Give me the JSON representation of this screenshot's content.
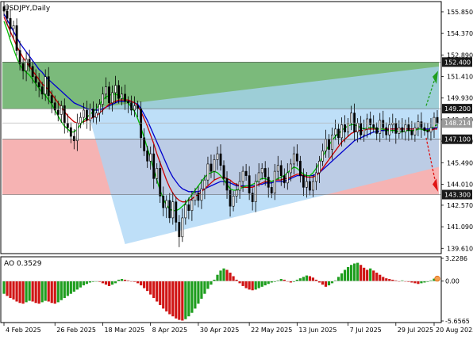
{
  "main_label": "USDJPY,Daily",
  "ao_label": "AO 0.3529",
  "colors": {
    "bull": "#000000",
    "bear": "#000000",
    "jaw": "#0000cc",
    "teeth": "#cc0000",
    "lips": "#00bb00",
    "channel": "#a8d4f5",
    "upper_zone": "#6db36d",
    "lower_zone": "#f4a6a6",
    "ao_up": "#1f9e1f",
    "ao_down": "#d01515",
    "up_arrow": "#1f9e1f",
    "down_arrow": "#e01515"
  },
  "price_axis": {
    "ticks": [
      "155.850",
      "154.370",
      "152.890",
      "151.410",
      "149.930",
      "148.450",
      "146.970",
      "145.490",
      "144.010",
      "142.570",
      "141.090",
      "139.610"
    ]
  },
  "ao_axis": {
    "ticks": [
      "3.2286",
      "0.00",
      "-5.6565"
    ]
  },
  "x_axis": {
    "ticks": [
      "4 Feb 2025",
      "26 Feb 2025",
      "18 Mar 2025",
      "8 Apr 2025",
      "30 Apr 2025",
      "22 May 2025",
      "13 Jun 2025",
      "7 Jul 2025",
      "29 Jul 2025",
      "20 Aug 2025"
    ]
  },
  "levels": [
    {
      "value": 152.4,
      "label": "152.400",
      "style": "dark"
    },
    {
      "value": 149.2,
      "label": "149.200",
      "style": "dark"
    },
    {
      "value": 148.214,
      "label": "148.214",
      "style": "grey"
    },
    {
      "value": 147.1,
      "label": "147.100",
      "style": "dark"
    },
    {
      "value": 143.3,
      "label": "143.300",
      "style": "dark"
    }
  ],
  "chart_data": {
    "type": "candlestick",
    "title": "USDJPY,Daily",
    "ylim": [
      139.3,
      156.5
    ],
    "ao_ylim": [
      -5.6565,
      3.2286
    ],
    "zones": [
      {
        "name": "upper target zone",
        "from": 149.2,
        "to": 152.4
      },
      {
        "name": "lower target zone",
        "from": 143.3,
        "to": 147.1
      }
    ],
    "channel": {
      "upper_start": 149.2,
      "upper_end": 152.1,
      "lower_start": 139.9,
      "lower_end": 145.2
    },
    "close": [
      155.9,
      155.4,
      154.7,
      154.9,
      153.2,
      152.3,
      151.8,
      152.6,
      152.1,
      151.4,
      151.0,
      150.7,
      150.2,
      151.4,
      150.1,
      149.6,
      149.1,
      148.8,
      149.4,
      148.2,
      147.9,
      147.3,
      147.0,
      148.2,
      148.6,
      149.1,
      148.4,
      149.2,
      148.6,
      148.9,
      149.5,
      150.2,
      150.7,
      149.6,
      150.3,
      150.8,
      149.9,
      150.2,
      149.7,
      149.6,
      149.1,
      149.4,
      149.2,
      147.2,
      146.3,
      145.6,
      146.1,
      144.4,
      145.1,
      143.2,
      142.4,
      142.9,
      141.7,
      142.8,
      141.4,
      140.4,
      141.7,
      142.6,
      142.2,
      142.9,
      143.4,
      142.9,
      143.7,
      144.3,
      145.4,
      144.9,
      145.7,
      146.1,
      145.3,
      144.4,
      143.6,
      142.5,
      143.2,
      143.6,
      144.2,
      144.9,
      144.6,
      143.4,
      142.8,
      144.2,
      144.8,
      145.1,
      144.5,
      143.8,
      143.4,
      144.9,
      145.3,
      144.6,
      144.1,
      144.8,
      145.4,
      146.1,
      145.6,
      144.6,
      143.8,
      144.2,
      143.6,
      144.2,
      144.8,
      145.6,
      146.3,
      147.1,
      146.4,
      147.4,
      147.8,
      147.2,
      148.1,
      147.6,
      148.2,
      148.9,
      147.6,
      148.2,
      147.4,
      147.8,
      148.5,
      148.1,
      147.9,
      147.5,
      148.4,
      147.9,
      147.4,
      148.1,
      148.2,
      147.5,
      147.9,
      147.6,
      148.1,
      147.7,
      147.4,
      147.9,
      148.3,
      147.9,
      147.7,
      147.6,
      147.9,
      148.6,
      148.2
    ],
    "jaw": [
      155.7,
      155.3,
      154.9,
      154.5,
      154.1,
      153.7,
      153.4,
      153.1,
      152.8,
      152.5,
      152.2,
      151.9,
      151.7,
      151.4,
      151.2,
      151.0,
      150.8,
      150.6,
      150.4,
      150.2,
      150.0,
      149.8,
      149.6,
      149.5,
      149.4,
      149.3,
      149.2,
      149.15,
      149.1,
      149.1,
      149.1,
      149.2,
      149.3,
      149.4,
      149.5,
      149.6,
      149.7,
      149.7,
      149.7,
      149.7,
      149.7,
      149.6,
      149.5,
      149.2,
      148.8,
      148.4,
      147.9,
      147.4,
      146.9,
      146.4,
      145.9,
      145.4,
      144.9,
      144.5,
      144.2,
      143.9,
      143.7,
      143.6,
      143.5,
      143.5,
      143.5,
      143.5,
      143.6,
      143.7,
      143.8,
      143.9,
      144.0,
      144.1,
      144.2,
      144.2,
      144.2,
      144.1,
      144.0,
      143.9,
      143.9,
      143.9,
      143.9,
      143.9,
      143.9,
      143.9,
      144.0,
      144.0,
      144.1,
      144.1,
      144.1,
      144.2,
      144.2,
      144.2,
      144.2,
      144.3,
      144.4,
      144.5,
      144.6,
      144.6,
      144.6,
      144.6,
      144.6,
      144.6,
      144.7,
      144.8,
      145.0,
      145.2,
      145.4,
      145.6,
      145.8,
      146.0,
      146.2,
      146.4,
      146.6,
      146.8,
      147.0,
      147.1,
      147.2,
      147.3,
      147.4,
      147.5,
      147.6,
      147.6,
      147.7,
      147.7,
      147.7,
      147.8,
      147.8,
      147.8,
      147.8,
      147.8,
      147.8,
      147.8,
      147.8,
      147.8,
      147.8,
      147.8,
      147.8,
      147.8,
      147.8,
      147.85,
      147.9
    ],
    "teeth": [
      155.5,
      155.0,
      154.5,
      154.0,
      153.5,
      153.1,
      152.7,
      152.4,
      152.1,
      151.8,
      151.5,
      151.2,
      150.9,
      150.7,
      150.5,
      150.2,
      149.9,
      149.6,
      149.3,
      149.0,
      148.7,
      148.5,
      148.3,
      148.2,
      148.2,
      148.3,
      148.4,
      148.5,
      148.6,
      148.7,
      148.9,
      149.1,
      149.3,
      149.5,
      149.6,
      149.7,
      149.8,
      149.8,
      149.8,
      149.8,
      149.7,
      149.6,
      149.4,
      149.0,
      148.5,
      148.0,
      147.4,
      146.8,
      146.1,
      145.5,
      144.9,
      144.3,
      143.8,
      143.4,
      143.1,
      142.9,
      142.8,
      142.8,
      142.9,
      143.0,
      143.2,
      143.3,
      143.5,
      143.7,
      143.9,
      144.1,
      144.3,
      144.4,
      144.5,
      144.5,
      144.4,
      144.3,
      144.1,
      144.0,
      143.9,
      143.8,
      143.8,
      143.8,
      143.8,
      143.9,
      144.0,
      144.1,
      144.2,
      144.2,
      144.2,
      144.3,
      144.3,
      144.3,
      144.4,
      144.4,
      144.5,
      144.6,
      144.7,
      144.7,
      144.6,
      144.5,
      144.5,
      144.5,
      144.6,
      144.8,
      145.1,
      145.4,
      145.7,
      146.0,
      146.3,
      146.6,
      146.9,
      147.1,
      147.3,
      147.5,
      147.6,
      147.7,
      147.7,
      147.7,
      147.8,
      147.8,
      147.8,
      147.8,
      147.8,
      147.8,
      147.8,
      147.8,
      147.8,
      147.8,
      147.8,
      147.8,
      147.8,
      147.8,
      147.8,
      147.8,
      147.8,
      147.8,
      147.75,
      147.7,
      147.7,
      147.8,
      147.8
    ],
    "lips": [
      155.2,
      154.6,
      153.9,
      153.3,
      152.7,
      152.2,
      151.9,
      151.7,
      151.5,
      151.2,
      150.9,
      150.6,
      150.3,
      150.1,
      149.8,
      149.5,
      149.1,
      148.7,
      148.3,
      148.0,
      147.8,
      147.6,
      147.6,
      147.8,
      148.1,
      148.4,
      148.6,
      148.8,
      149.0,
      149.2,
      149.5,
      149.8,
      150.0,
      150.1,
      150.2,
      150.2,
      150.1,
      150.0,
      149.8,
      149.6,
      149.3,
      149.0,
      148.5,
      147.9,
      147.2,
      146.5,
      145.8,
      145.0,
      144.3,
      143.6,
      143.0,
      142.6,
      142.3,
      142.2,
      142.2,
      142.3,
      142.5,
      142.7,
      143.0,
      143.3,
      143.6,
      143.9,
      144.2,
      144.5,
      144.7,
      144.8,
      144.9,
      144.8,
      144.6,
      144.3,
      144.0,
      143.7,
      143.6,
      143.6,
      143.7,
      143.8,
      143.9,
      143.9,
      144.0,
      144.1,
      144.3,
      144.4,
      144.4,
      144.3,
      144.2,
      144.3,
      144.4,
      144.5,
      144.6,
      144.8,
      145.0,
      145.2,
      145.1,
      144.9,
      144.7,
      144.6,
      144.6,
      144.8,
      145.1,
      145.5,
      145.9,
      146.3,
      146.7,
      147.0,
      147.3,
      147.5,
      147.7,
      147.9,
      148.0,
      148.1,
      148.1,
      148.0,
      147.9,
      147.8,
      147.9,
      147.9,
      147.9,
      147.8,
      147.8,
      147.8,
      147.7,
      147.7,
      147.7,
      147.7,
      147.6,
      147.6,
      147.7,
      147.7,
      147.7,
      147.7,
      147.8,
      147.8,
      147.7,
      147.7,
      147.8,
      148.0,
      148.1
    ],
    "ao": [
      -1.8,
      -2.1,
      -2.4,
      -2.6,
      -2.9,
      -3.1,
      -3.2,
      -3.0,
      -2.8,
      -2.9,
      -3.1,
      -3.2,
      -3.0,
      -2.8,
      -2.9,
      -3.1,
      -3.2,
      -3.0,
      -2.7,
      -2.4,
      -2.1,
      -1.8,
      -1.5,
      -1.2,
      -0.9,
      -0.6,
      -0.4,
      -0.2,
      -0.1,
      0.0,
      -0.1,
      -0.3,
      -0.5,
      -0.7,
      -0.5,
      -0.3,
      0.2,
      0.3,
      0.2,
      0.1,
      0.0,
      -0.1,
      -0.3,
      -0.6,
      -1.0,
      -1.4,
      -1.9,
      -2.4,
      -2.9,
      -3.4,
      -3.9,
      -4.3,
      -4.7,
      -5.0,
      -5.3,
      -5.5,
      -5.6,
      -5.4,
      -5.0,
      -4.5,
      -3.9,
      -3.2,
      -2.5,
      -1.8,
      -1.1,
      -0.5,
      0.2,
      0.9,
      1.5,
      1.8,
      1.6,
      1.2,
      0.7,
      0.2,
      -0.3,
      -0.7,
      -1.0,
      -1.2,
      -1.3,
      -1.2,
      -1.0,
      -0.8,
      -0.6,
      -0.4,
      -0.2,
      -0.1,
      0.1,
      0.3,
      0.2,
      0.0,
      -0.2,
      -0.1,
      0.2,
      0.4,
      0.6,
      0.8,
      0.7,
      0.5,
      0.2,
      -0.2,
      -0.5,
      -0.8,
      -0.6,
      -0.3,
      0.1,
      0.6,
      1.1,
      1.6,
      2.0,
      2.3,
      2.5,
      2.6,
      2.3,
      1.9,
      1.6,
      1.8,
      1.5,
      1.2,
      0.9,
      0.6,
      0.4,
      0.3,
      0.2,
      0.1,
      0.0,
      0.1,
      0.0,
      -0.1,
      -0.2,
      -0.3,
      -0.4,
      -0.3,
      -0.2,
      -0.1,
      0.1,
      0.35,
      0.35
    ]
  }
}
